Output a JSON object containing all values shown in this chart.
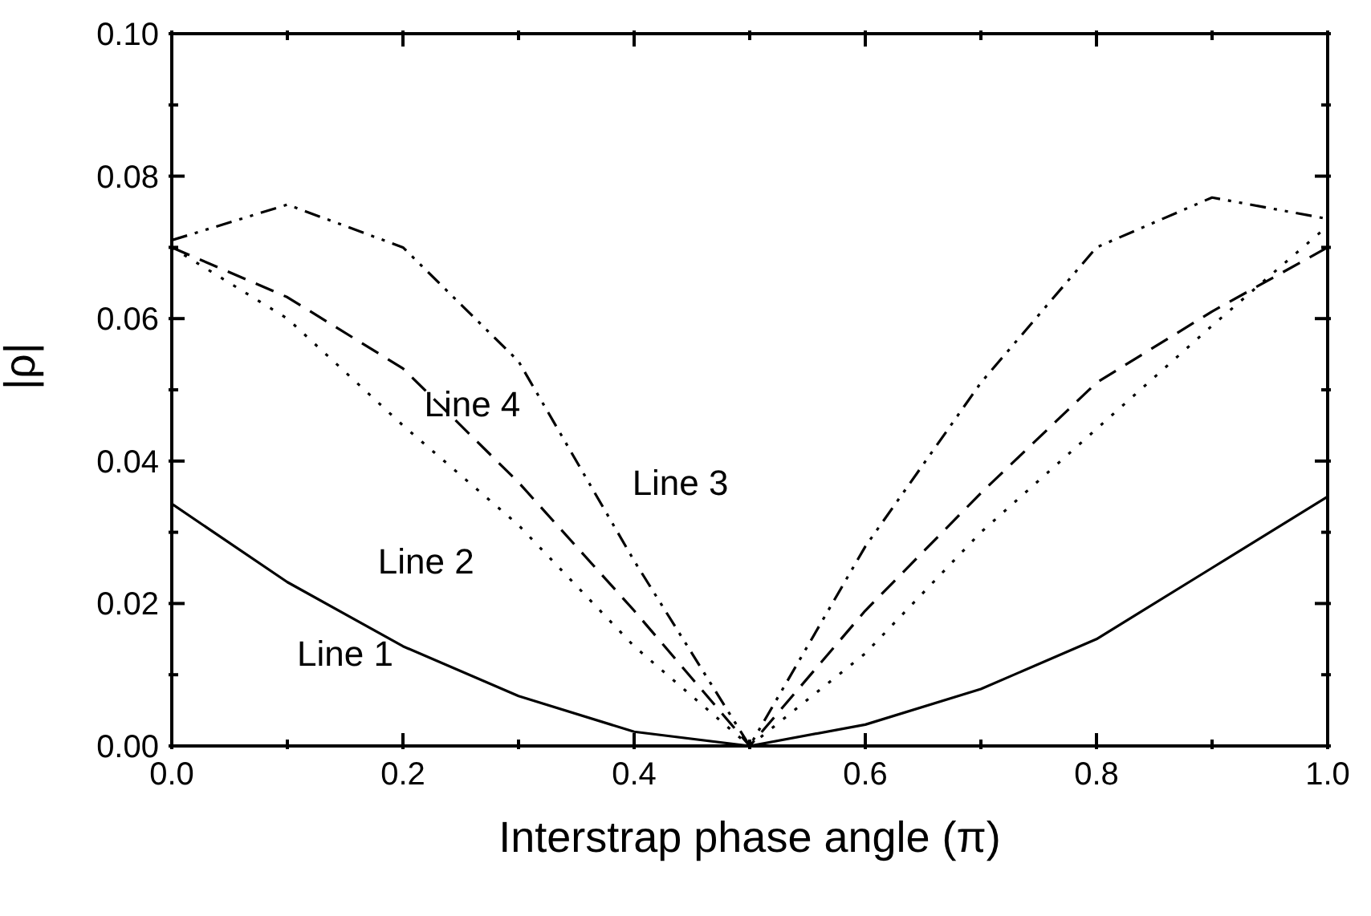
{
  "chart_data": {
    "type": "line",
    "xlabel": "Interstrap phase angle (π)",
    "ylabel": "|ρ|",
    "x": [
      0,
      0.1,
      0.2,
      0.3,
      0.4,
      0.5,
      0.6,
      0.7,
      0.8,
      0.9,
      1.0
    ],
    "series": [
      {
        "name": "Line 1",
        "color": "#000000",
        "line_style": "solid",
        "values": [
          0.034,
          0.023,
          0.014,
          0.007,
          0.002,
          0,
          0.003,
          0.008,
          0.015,
          0.025,
          0.035
        ]
      },
      {
        "name": "Line 2",
        "color": "#000000",
        "line_style": "dotted",
        "values": [
          0.07,
          0.06,
          0.045,
          0.031,
          0.014,
          0,
          0.013,
          0.03,
          0.0445,
          0.059,
          0.073
        ]
      },
      {
        "name": "Line 3",
        "color": "#000000",
        "line_style": "dashdotdot",
        "values": [
          0.071,
          0.076,
          0.07,
          0.054,
          0.026,
          0,
          0.028,
          0.051,
          0.07,
          0.077,
          0.074
        ]
      },
      {
        "name": "Line 4",
        "color": "#000000",
        "line_style": "dashed",
        "values": [
          0.07,
          0.063,
          0.053,
          0.037,
          0.019,
          0,
          0.019,
          0.0355,
          0.051,
          0.061,
          0.07
        ]
      }
    ],
    "xlim": [
      0,
      1.0
    ],
    "xticks": [
      {
        "value": 0,
        "label": "0.0"
      },
      {
        "value": 0.1,
        "label": null
      },
      {
        "value": 0.2,
        "label": "0.2"
      },
      {
        "value": 0.3,
        "label": null
      },
      {
        "value": 0.4,
        "label": "0.4"
      },
      {
        "value": 0.5,
        "label": null
      },
      {
        "value": 0.6,
        "label": "0.6"
      },
      {
        "value": 0.7,
        "label": null
      },
      {
        "value": 0.8,
        "label": "0.8"
      },
      {
        "value": 0.9,
        "label": null
      },
      {
        "value": 1.0,
        "label": "1.0"
      }
    ],
    "ylim": [
      0,
      0.1
    ],
    "yticks": [
      {
        "value": 0,
        "label": "0.00"
      },
      {
        "value": 0.01,
        "label": null
      },
      {
        "value": 0.02,
        "label": "0.02"
      },
      {
        "value": 0.03,
        "label": null
      },
      {
        "value": 0.04,
        "label": "0.04"
      },
      {
        "value": 0.05,
        "label": null
      },
      {
        "value": 0.06,
        "label": "0.06"
      },
      {
        "value": 0.07,
        "label": null
      },
      {
        "value": 0.08,
        "label": "0.08"
      },
      {
        "value": 0.09,
        "label": null
      },
      {
        "value": 0.1,
        "label": "0.10"
      }
    ],
    "marker": "none"
  }
}
